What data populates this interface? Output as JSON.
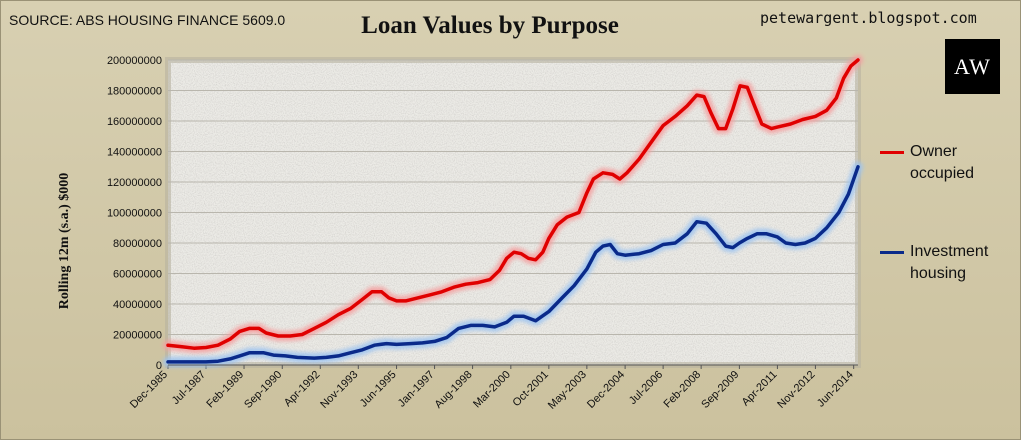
{
  "source": "SOURCE: ABS HOUSING FINANCE 5609.0",
  "site": "petewargent.blogspot.com",
  "logo_text": "AW",
  "colors": {
    "owner": "#e00000",
    "owner_glow": "#f4a0a0",
    "investment": "#0a2a8a",
    "investment_glow": "#9ec4f0"
  },
  "chart_data": {
    "type": "line",
    "title": "Loan Values by Purpose",
    "ylabel": "Rolling 12m (s.a.) $000",
    "ylim": [
      0,
      200000000
    ],
    "yticks": [
      0,
      20000000,
      40000000,
      60000000,
      80000000,
      100000000,
      120000000,
      140000000,
      160000000,
      180000000,
      200000000
    ],
    "xlim": [
      1985.92,
      2014.6
    ],
    "xticks": [
      {
        "label": "Dec-1985",
        "x": 1985.92
      },
      {
        "label": "Jul-1987",
        "x": 1987.5
      },
      {
        "label": "Feb-1989",
        "x": 1989.08
      },
      {
        "label": "Sep-1990",
        "x": 1990.67
      },
      {
        "label": "Apr-1992",
        "x": 1992.25
      },
      {
        "label": "Nov-1993",
        "x": 1993.83
      },
      {
        "label": "Jun-1995",
        "x": 1995.42
      },
      {
        "label": "Jan-1997",
        "x": 1997.0
      },
      {
        "label": "Aug-1998",
        "x": 1998.58
      },
      {
        "label": "Mar-2000",
        "x": 2000.17
      },
      {
        "label": "Oct-2001",
        "x": 2001.75
      },
      {
        "label": "May-2003",
        "x": 2003.33
      },
      {
        "label": "Dec-2004",
        "x": 2004.92
      },
      {
        "label": "Jul-2006",
        "x": 2006.5
      },
      {
        "label": "Feb-2008",
        "x": 2008.08
      },
      {
        "label": "Sep-2009",
        "x": 2009.67
      },
      {
        "label": "Apr-2011",
        "x": 2011.25
      },
      {
        "label": "Nov-2012",
        "x": 2012.83
      },
      {
        "label": "Jun-2014",
        "x": 2014.42
      }
    ],
    "legend_position": "right",
    "series": [
      {
        "name": "Owner occupied",
        "points": [
          [
            1985.92,
            13000000
          ],
          [
            1986.5,
            12000000
          ],
          [
            1987.0,
            11000000
          ],
          [
            1987.5,
            11500000
          ],
          [
            1988.0,
            13000000
          ],
          [
            1988.5,
            17000000
          ],
          [
            1988.9,
            22000000
          ],
          [
            1989.3,
            24000000
          ],
          [
            1989.7,
            24000000
          ],
          [
            1990.0,
            21000000
          ],
          [
            1990.5,
            19000000
          ],
          [
            1991.0,
            19000000
          ],
          [
            1991.5,
            20000000
          ],
          [
            1992.0,
            24000000
          ],
          [
            1992.5,
            28000000
          ],
          [
            1993.0,
            33000000
          ],
          [
            1993.5,
            37000000
          ],
          [
            1994.0,
            43000000
          ],
          [
            1994.4,
            48000000
          ],
          [
            1994.8,
            48000000
          ],
          [
            1995.1,
            44000000
          ],
          [
            1995.42,
            42000000
          ],
          [
            1995.8,
            42000000
          ],
          [
            1996.3,
            44000000
          ],
          [
            1996.8,
            46000000
          ],
          [
            1997.3,
            48000000
          ],
          [
            1997.8,
            51000000
          ],
          [
            1998.3,
            53000000
          ],
          [
            1998.8,
            54000000
          ],
          [
            1999.3,
            56000000
          ],
          [
            1999.7,
            62000000
          ],
          [
            2000.0,
            70000000
          ],
          [
            2000.3,
            74000000
          ],
          [
            2000.6,
            73000000
          ],
          [
            2000.9,
            70000000
          ],
          [
            2001.2,
            69000000
          ],
          [
            2001.5,
            74000000
          ],
          [
            2001.75,
            83000000
          ],
          [
            2002.1,
            92000000
          ],
          [
            2002.5,
            97000000
          ],
          [
            2003.0,
            100000000
          ],
          [
            2003.33,
            113000000
          ],
          [
            2003.6,
            122000000
          ],
          [
            2004.0,
            126000000
          ],
          [
            2004.4,
            125000000
          ],
          [
            2004.7,
            122000000
          ],
          [
            2005.0,
            126000000
          ],
          [
            2005.5,
            135000000
          ],
          [
            2006.0,
            146000000
          ],
          [
            2006.5,
            157000000
          ],
          [
            2007.0,
            163000000
          ],
          [
            2007.5,
            170000000
          ],
          [
            2007.9,
            177000000
          ],
          [
            2008.2,
            176000000
          ],
          [
            2008.5,
            165000000
          ],
          [
            2008.8,
            155000000
          ],
          [
            2009.1,
            155000000
          ],
          [
            2009.4,
            168000000
          ],
          [
            2009.7,
            183000000
          ],
          [
            2010.0,
            182000000
          ],
          [
            2010.3,
            170000000
          ],
          [
            2010.6,
            158000000
          ],
          [
            2011.0,
            155000000
          ],
          [
            2011.25,
            156000000
          ],
          [
            2011.8,
            158000000
          ],
          [
            2012.3,
            161000000
          ],
          [
            2012.83,
            163000000
          ],
          [
            2013.3,
            167000000
          ],
          [
            2013.7,
            175000000
          ],
          [
            2014.0,
            188000000
          ],
          [
            2014.3,
            196000000
          ],
          [
            2014.6,
            200000000
          ]
        ]
      },
      {
        "name": "Investment housing",
        "points": [
          [
            1985.92,
            2000000
          ],
          [
            1986.5,
            2000000
          ],
          [
            1987.5,
            2000000
          ],
          [
            1988.0,
            2500000
          ],
          [
            1988.5,
            4000000
          ],
          [
            1988.9,
            6000000
          ],
          [
            1989.3,
            8000000
          ],
          [
            1989.9,
            8000000
          ],
          [
            1990.3,
            6500000
          ],
          [
            1990.8,
            6000000
          ],
          [
            1991.3,
            5000000
          ],
          [
            1992.0,
            4500000
          ],
          [
            1992.5,
            5000000
          ],
          [
            1993.0,
            6000000
          ],
          [
            1993.5,
            8000000
          ],
          [
            1994.0,
            10000000
          ],
          [
            1994.5,
            13000000
          ],
          [
            1995.0,
            14000000
          ],
          [
            1995.42,
            13500000
          ],
          [
            1996.0,
            14000000
          ],
          [
            1996.5,
            14500000
          ],
          [
            1997.0,
            15500000
          ],
          [
            1997.5,
            18000000
          ],
          [
            1998.0,
            24000000
          ],
          [
            1998.5,
            26000000
          ],
          [
            1999.0,
            26000000
          ],
          [
            1999.5,
            25000000
          ],
          [
            2000.0,
            28000000
          ],
          [
            2000.3,
            32000000
          ],
          [
            2000.7,
            32000000
          ],
          [
            2001.2,
            29000000
          ],
          [
            2001.75,
            35000000
          ],
          [
            2002.3,
            44000000
          ],
          [
            2002.8,
            52000000
          ],
          [
            2003.33,
            63000000
          ],
          [
            2003.7,
            74000000
          ],
          [
            2004.0,
            78000000
          ],
          [
            2004.3,
            79000000
          ],
          [
            2004.6,
            73000000
          ],
          [
            2004.92,
            72000000
          ],
          [
            2005.5,
            73000000
          ],
          [
            2006.0,
            75000000
          ],
          [
            2006.5,
            79000000
          ],
          [
            2007.0,
            80000000
          ],
          [
            2007.5,
            86000000
          ],
          [
            2007.9,
            94000000
          ],
          [
            2008.3,
            93000000
          ],
          [
            2008.7,
            86000000
          ],
          [
            2009.1,
            78000000
          ],
          [
            2009.4,
            77000000
          ],
          [
            2009.67,
            80000000
          ],
          [
            2010.0,
            83000000
          ],
          [
            2010.4,
            86000000
          ],
          [
            2010.8,
            86000000
          ],
          [
            2011.25,
            84000000
          ],
          [
            2011.6,
            80000000
          ],
          [
            2012.0,
            79000000
          ],
          [
            2012.4,
            80000000
          ],
          [
            2012.83,
            83000000
          ],
          [
            2013.3,
            90000000
          ],
          [
            2013.8,
            100000000
          ],
          [
            2014.2,
            112000000
          ],
          [
            2014.6,
            130000000
          ]
        ]
      }
    ]
  }
}
